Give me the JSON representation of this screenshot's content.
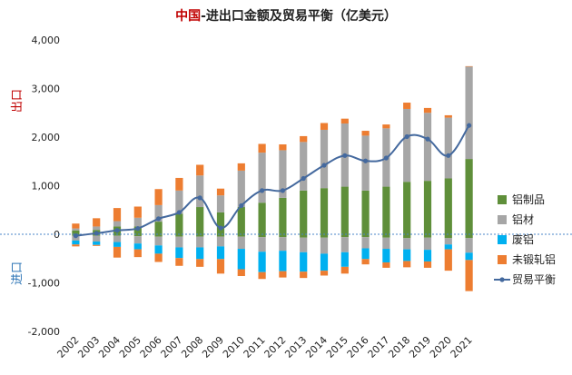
{
  "chart_data": {
    "type": "bar",
    "title_red": "中国",
    "title_black": "-进出口金额及贸易平衡（亿美元）",
    "side_label_top": "出口",
    "side_label_bottom": "进口",
    "categories": [
      "2002",
      "2003",
      "2004",
      "2005",
      "2006",
      "2007",
      "2008",
      "2009",
      "2010",
      "2011",
      "2012",
      "2013",
      "2014",
      "2015",
      "2016",
      "2017",
      "2018",
      "2019",
      "2020",
      "2021"
    ],
    "ylim": [
      -2000,
      4000
    ],
    "yticks": [
      -2000,
      -1000,
      0,
      1000,
      2000,
      3000,
      4000
    ],
    "ytick_labels": [
      "-2,000",
      "-1,000",
      "0",
      "1,000",
      "2,000",
      "3,000",
      "4,000"
    ],
    "export_series": [
      {
        "name": "铝制品",
        "color": "#5f8f3a",
        "values": [
          80,
          90,
          160,
          160,
          260,
          420,
          560,
          450,
          560,
          650,
          750,
          900,
          950,
          980,
          900,
          980,
          1080,
          1100,
          1150,
          1550
        ]
      },
      {
        "name": "铝材",
        "color": "#a6a6a6",
        "values": [
          40,
          70,
          110,
          180,
          340,
          480,
          650,
          350,
          750,
          1030,
          980,
          1000,
          1200,
          1300,
          1130,
          1200,
          1500,
          1400,
          1250,
          1900
        ]
      },
      {
        "name": "废铝",
        "color": "#00b0f0",
        "values": [
          0,
          0,
          0,
          0,
          0,
          0,
          0,
          0,
          0,
          0,
          0,
          0,
          0,
          0,
          0,
          0,
          0,
          0,
          0,
          0
        ]
      },
      {
        "name": "未锻轧铝",
        "color": "#ed7d31",
        "values": [
          100,
          170,
          270,
          230,
          330,
          260,
          220,
          140,
          150,
          180,
          120,
          120,
          140,
          100,
          100,
          80,
          130,
          100,
          50,
          10
        ]
      }
    ],
    "import_series": [
      {
        "name": "铝制品",
        "color": "#5f8f3a",
        "values": [
          -30,
          -30,
          -30,
          -40,
          -50,
          -50,
          -50,
          -50,
          -50,
          -60,
          -60,
          -70,
          -70,
          -60,
          -60,
          -70,
          -80,
          -70,
          -80,
          -80
        ]
      },
      {
        "name": "铝材",
        "color": "#a6a6a6",
        "values": [
          -100,
          -120,
          -130,
          -150,
          -180,
          -220,
          -220,
          -200,
          -250,
          -300,
          -280,
          -300,
          -330,
          -310,
          -230,
          -230,
          -230,
          -250,
          -130,
          -300
        ]
      },
      {
        "name": "废铝",
        "color": "#00b0f0",
        "values": [
          -80,
          -70,
          -100,
          -120,
          -170,
          -220,
          -240,
          -260,
          -420,
          -420,
          -420,
          -400,
          -350,
          -300,
          -220,
          -280,
          -240,
          -240,
          -100,
          -150
        ]
      },
      {
        "name": "未锻轧铝",
        "color": "#ed7d31",
        "values": [
          -40,
          -20,
          -220,
          -160,
          -170,
          -160,
          -160,
          -300,
          -140,
          -140,
          -130,
          -130,
          -100,
          -140,
          -110,
          -110,
          -130,
          -130,
          -440,
          -640
        ]
      }
    ],
    "balance": {
      "name": "贸易平衡",
      "color": "#44699e",
      "values": [
        -30,
        20,
        80,
        120,
        320,
        450,
        750,
        130,
        590,
        900,
        900,
        1150,
        1420,
        1620,
        1510,
        1570,
        2010,
        1960,
        1620,
        2240
      ]
    },
    "legend": [
      {
        "name": "铝制品",
        "color": "#5f8f3a",
        "kind": "square"
      },
      {
        "name": "铝材",
        "color": "#a6a6a6",
        "kind": "square"
      },
      {
        "name": "废铝",
        "color": "#00b0f0",
        "kind": "square"
      },
      {
        "name": "未锻轧铝",
        "color": "#ed7d31",
        "kind": "square"
      },
      {
        "name": "贸易平衡",
        "color": "#44699e",
        "kind": "line"
      }
    ],
    "legend_position": "right",
    "zero_line_style": "dashed",
    "zero_line_color": "#4a86c8",
    "grid": false
  }
}
